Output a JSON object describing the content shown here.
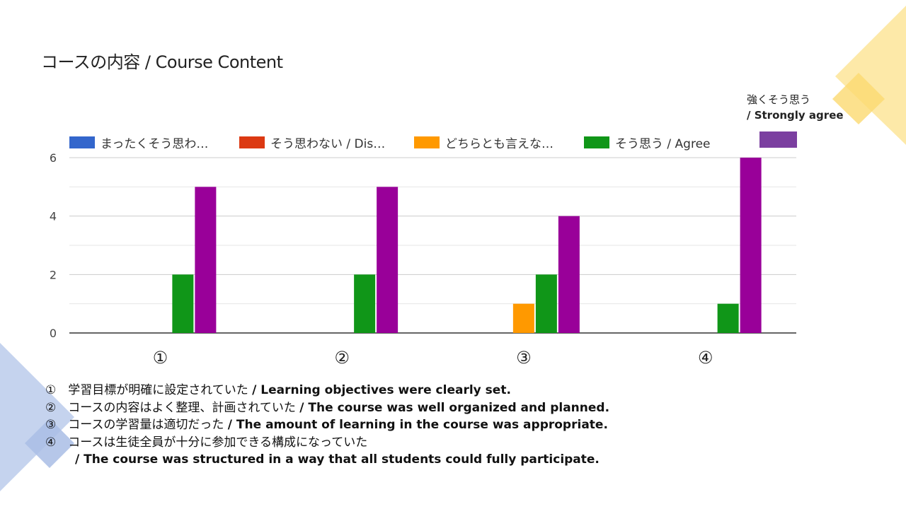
{
  "slide": {
    "title": "コースの内容 / Course Content"
  },
  "colors": {
    "deco_yellow": "#fde9a8",
    "deco_yellow_dark": "#fbd971",
    "deco_blue": "#c5d3ee",
    "deco_blue_dark": "#a9bde5"
  },
  "chart_data": {
    "type": "bar",
    "categories": [
      "①",
      "②",
      "③",
      "④"
    ],
    "series": [
      {
        "name": "まったくそう思わ…",
        "color": "#3366cc",
        "values": [
          0,
          0,
          0,
          0
        ]
      },
      {
        "name": "そう思わない / Dis…",
        "color": "#dc3912",
        "values": [
          0,
          0,
          0,
          0
        ]
      },
      {
        "name": "どちらとも言えな…",
        "color": "#ff9900",
        "values": [
          0,
          0,
          1,
          0
        ]
      },
      {
        "name": "そう思う / Agree",
        "color": "#109618",
        "values": [
          2,
          2,
          2,
          1
        ]
      },
      {
        "name": "強くそう思う / Strongly agree",
        "color": "#990099",
        "values": [
          5,
          5,
          4,
          6
        ]
      }
    ],
    "ylim": [
      0,
      6
    ],
    "yticks": [
      "0",
      "2",
      "4",
      "6"
    ],
    "grid": true,
    "legend_position": "top"
  },
  "legend": {
    "items": [
      {
        "label": "まったくそう思わ…",
        "color": "#3366cc"
      },
      {
        "label": "そう思わない / Dis…",
        "color": "#dc3912"
      },
      {
        "label": "どちらとも言えな…",
        "color": "#ff9900"
      },
      {
        "label": "そう思う / Agree",
        "color": "#109618"
      }
    ],
    "extra_label_jp": "強くそう思う",
    "extra_label_en": "/ Strongly agree",
    "extra_color": "#7b3fa0"
  },
  "notes": [
    {
      "jp": "①　学習目標が明確に設定されていた ",
      "en": "/ Learning objectives were clearly set."
    },
    {
      "jp": "②　コースの内容はよく整理、計画されていた ",
      "en": "/ The course was well organized and planned."
    },
    {
      "jp": "③　コースの学習量は適切だった ",
      "en": "/ The amount of learning in the course was appropriate."
    },
    {
      "jp": "④　コースは生徒全員が十分に参加できる構成になっていた",
      "en": ""
    },
    {
      "jp": "",
      "en": "/ The course was structured in a way that all students could fully participate."
    }
  ]
}
